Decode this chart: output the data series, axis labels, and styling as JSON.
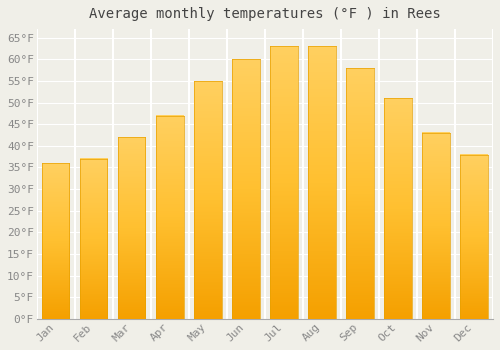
{
  "title": "Average monthly temperatures (°F ) in Rees",
  "months": [
    "Jan",
    "Feb",
    "Mar",
    "Apr",
    "May",
    "Jun",
    "Jul",
    "Aug",
    "Sep",
    "Oct",
    "Nov",
    "Dec"
  ],
  "values": [
    36,
    37,
    42,
    47,
    55,
    60,
    63,
    63,
    58,
    51,
    43,
    38
  ],
  "bar_color_top": "#FFC020",
  "bar_color_bottom": "#F5A800",
  "background_color": "#F0EFE8",
  "grid_color": "#FFFFFF",
  "ylim": [
    0,
    67
  ],
  "yticks": [
    0,
    5,
    10,
    15,
    20,
    25,
    30,
    35,
    40,
    45,
    50,
    55,
    60,
    65
  ],
  "title_fontsize": 10,
  "tick_fontsize": 8,
  "font_family": "monospace"
}
